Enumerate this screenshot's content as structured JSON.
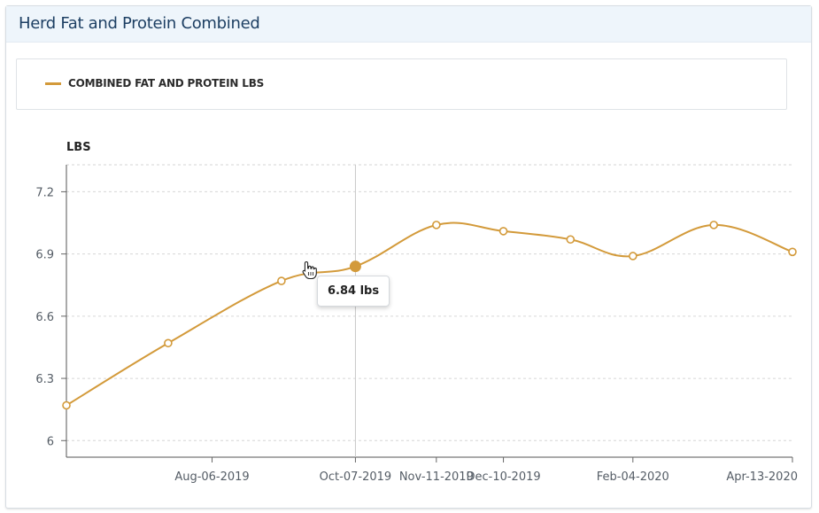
{
  "panel": {
    "title": "Herd Fat and Protein Combined"
  },
  "legend": {
    "label": "COMBINED FAT AND PROTEIN LBS",
    "color": "#d39a3a"
  },
  "tooltip": {
    "text": "6.84 lbs"
  },
  "chart_data": {
    "type": "line",
    "ylabel": "LBS",
    "ylim": [
      5.92,
      7.33
    ],
    "yticks": [
      6,
      6.3,
      6.6,
      6.9,
      7.2
    ],
    "ytick_labels": [
      "6",
      "6.3",
      "6.6",
      "6.9",
      "7.2"
    ],
    "xlim": [
      "2019-06-04",
      "2020-04-13"
    ],
    "xticks": [
      "2019-08-06",
      "2019-10-07",
      "2019-11-11",
      "2019-12-10",
      "2020-02-04",
      "2020-04-13"
    ],
    "xtick_labels": [
      "Aug-06-2019",
      "Oct-07-2019",
      "Nov-11-2019",
      "Dec-10-2019",
      "Feb-04-2020",
      "Apr-13-2020"
    ],
    "grid": true,
    "legend_position": "top",
    "series": [
      {
        "name": "COMBINED FAT AND PROTEIN LBS",
        "color": "#d39a3a",
        "x": [
          "2019-06-04",
          "2019-07-18",
          "2019-09-05",
          "2019-10-07",
          "2019-11-11",
          "2019-12-10",
          "2020-01-08",
          "2020-02-04",
          "2020-03-10",
          "2020-04-13"
        ],
        "y": [
          6.17,
          6.47,
          6.77,
          6.84,
          7.04,
          7.01,
          6.97,
          6.89,
          7.04,
          6.91
        ]
      }
    ],
    "highlight": {
      "x": "2019-10-07",
      "y": 6.84
    }
  }
}
